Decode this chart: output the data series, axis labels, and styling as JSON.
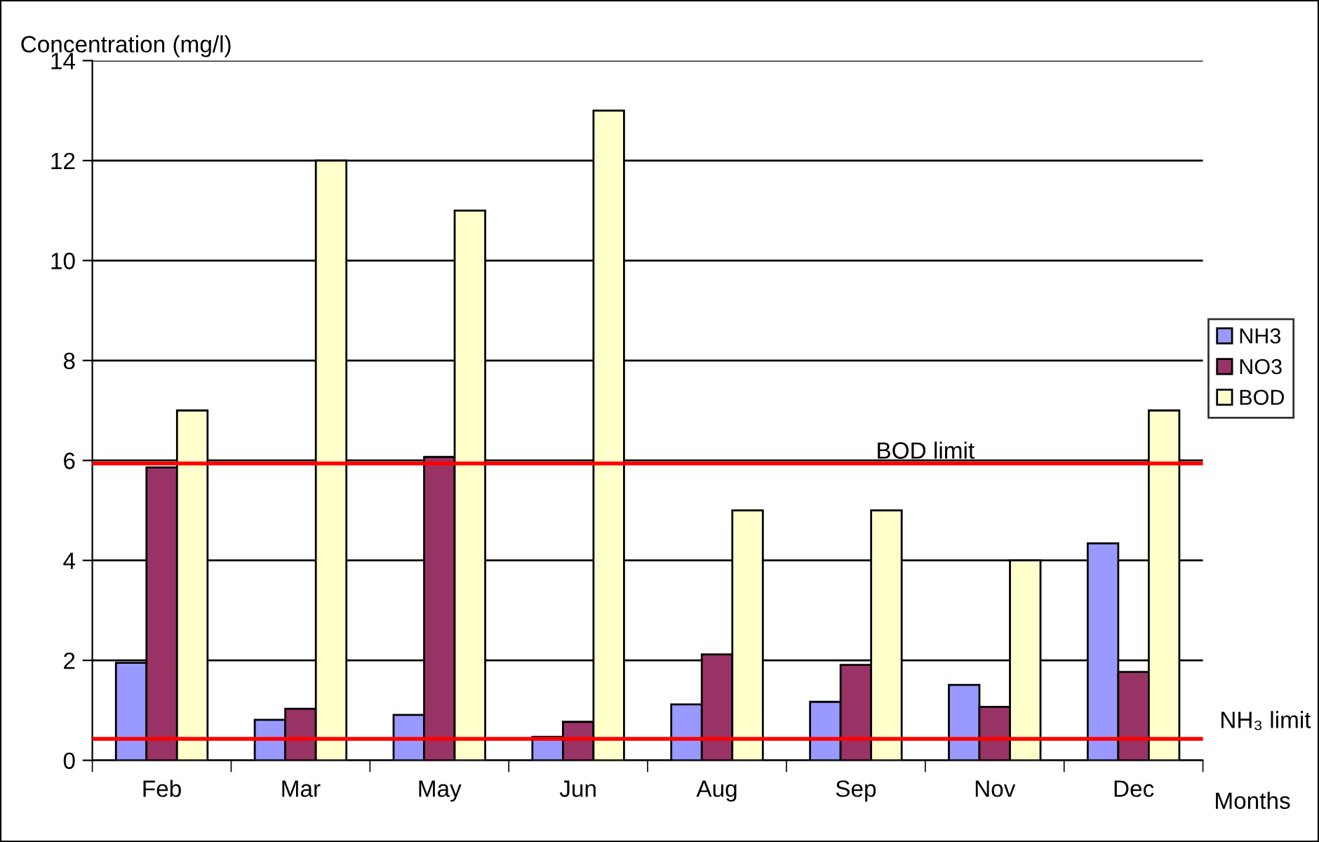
{
  "chart_data": {
    "type": "bar",
    "ylabel": "Concentration (mg/l)",
    "xlabel": "Months",
    "categories": [
      "Feb",
      "Mar",
      "May",
      "Jun",
      "Aug",
      "Sep",
      "Nov",
      "Dec"
    ],
    "series": [
      {
        "name": "NH3",
        "color": "#9999ff",
        "values": [
          1.95,
          0.81,
          0.91,
          0.47,
          1.12,
          1.17,
          1.51,
          4.34
        ]
      },
      {
        "name": "NO3",
        "color": "#993366",
        "values": [
          5.86,
          1.03,
          6.07,
          0.77,
          2.12,
          1.91,
          1.07,
          1.77
        ]
      },
      {
        "name": "BOD",
        "color": "#ffffcc",
        "values": [
          7,
          12,
          11,
          13,
          5,
          5,
          4,
          7
        ]
      }
    ],
    "ylim": [
      0,
      14
    ],
    "yticks": [
      0,
      2,
      4,
      6,
      8,
      10,
      12,
      14
    ],
    "grid": "y",
    "legend": "right",
    "ref_lines": [
      {
        "axis": "y",
        "value": 5.94,
        "label": "BOD limit",
        "color": "#ff0000"
      },
      {
        "axis": "y",
        "value": 0.43,
        "label": "NH₃ limit",
        "color": "#ff0000"
      }
    ]
  }
}
